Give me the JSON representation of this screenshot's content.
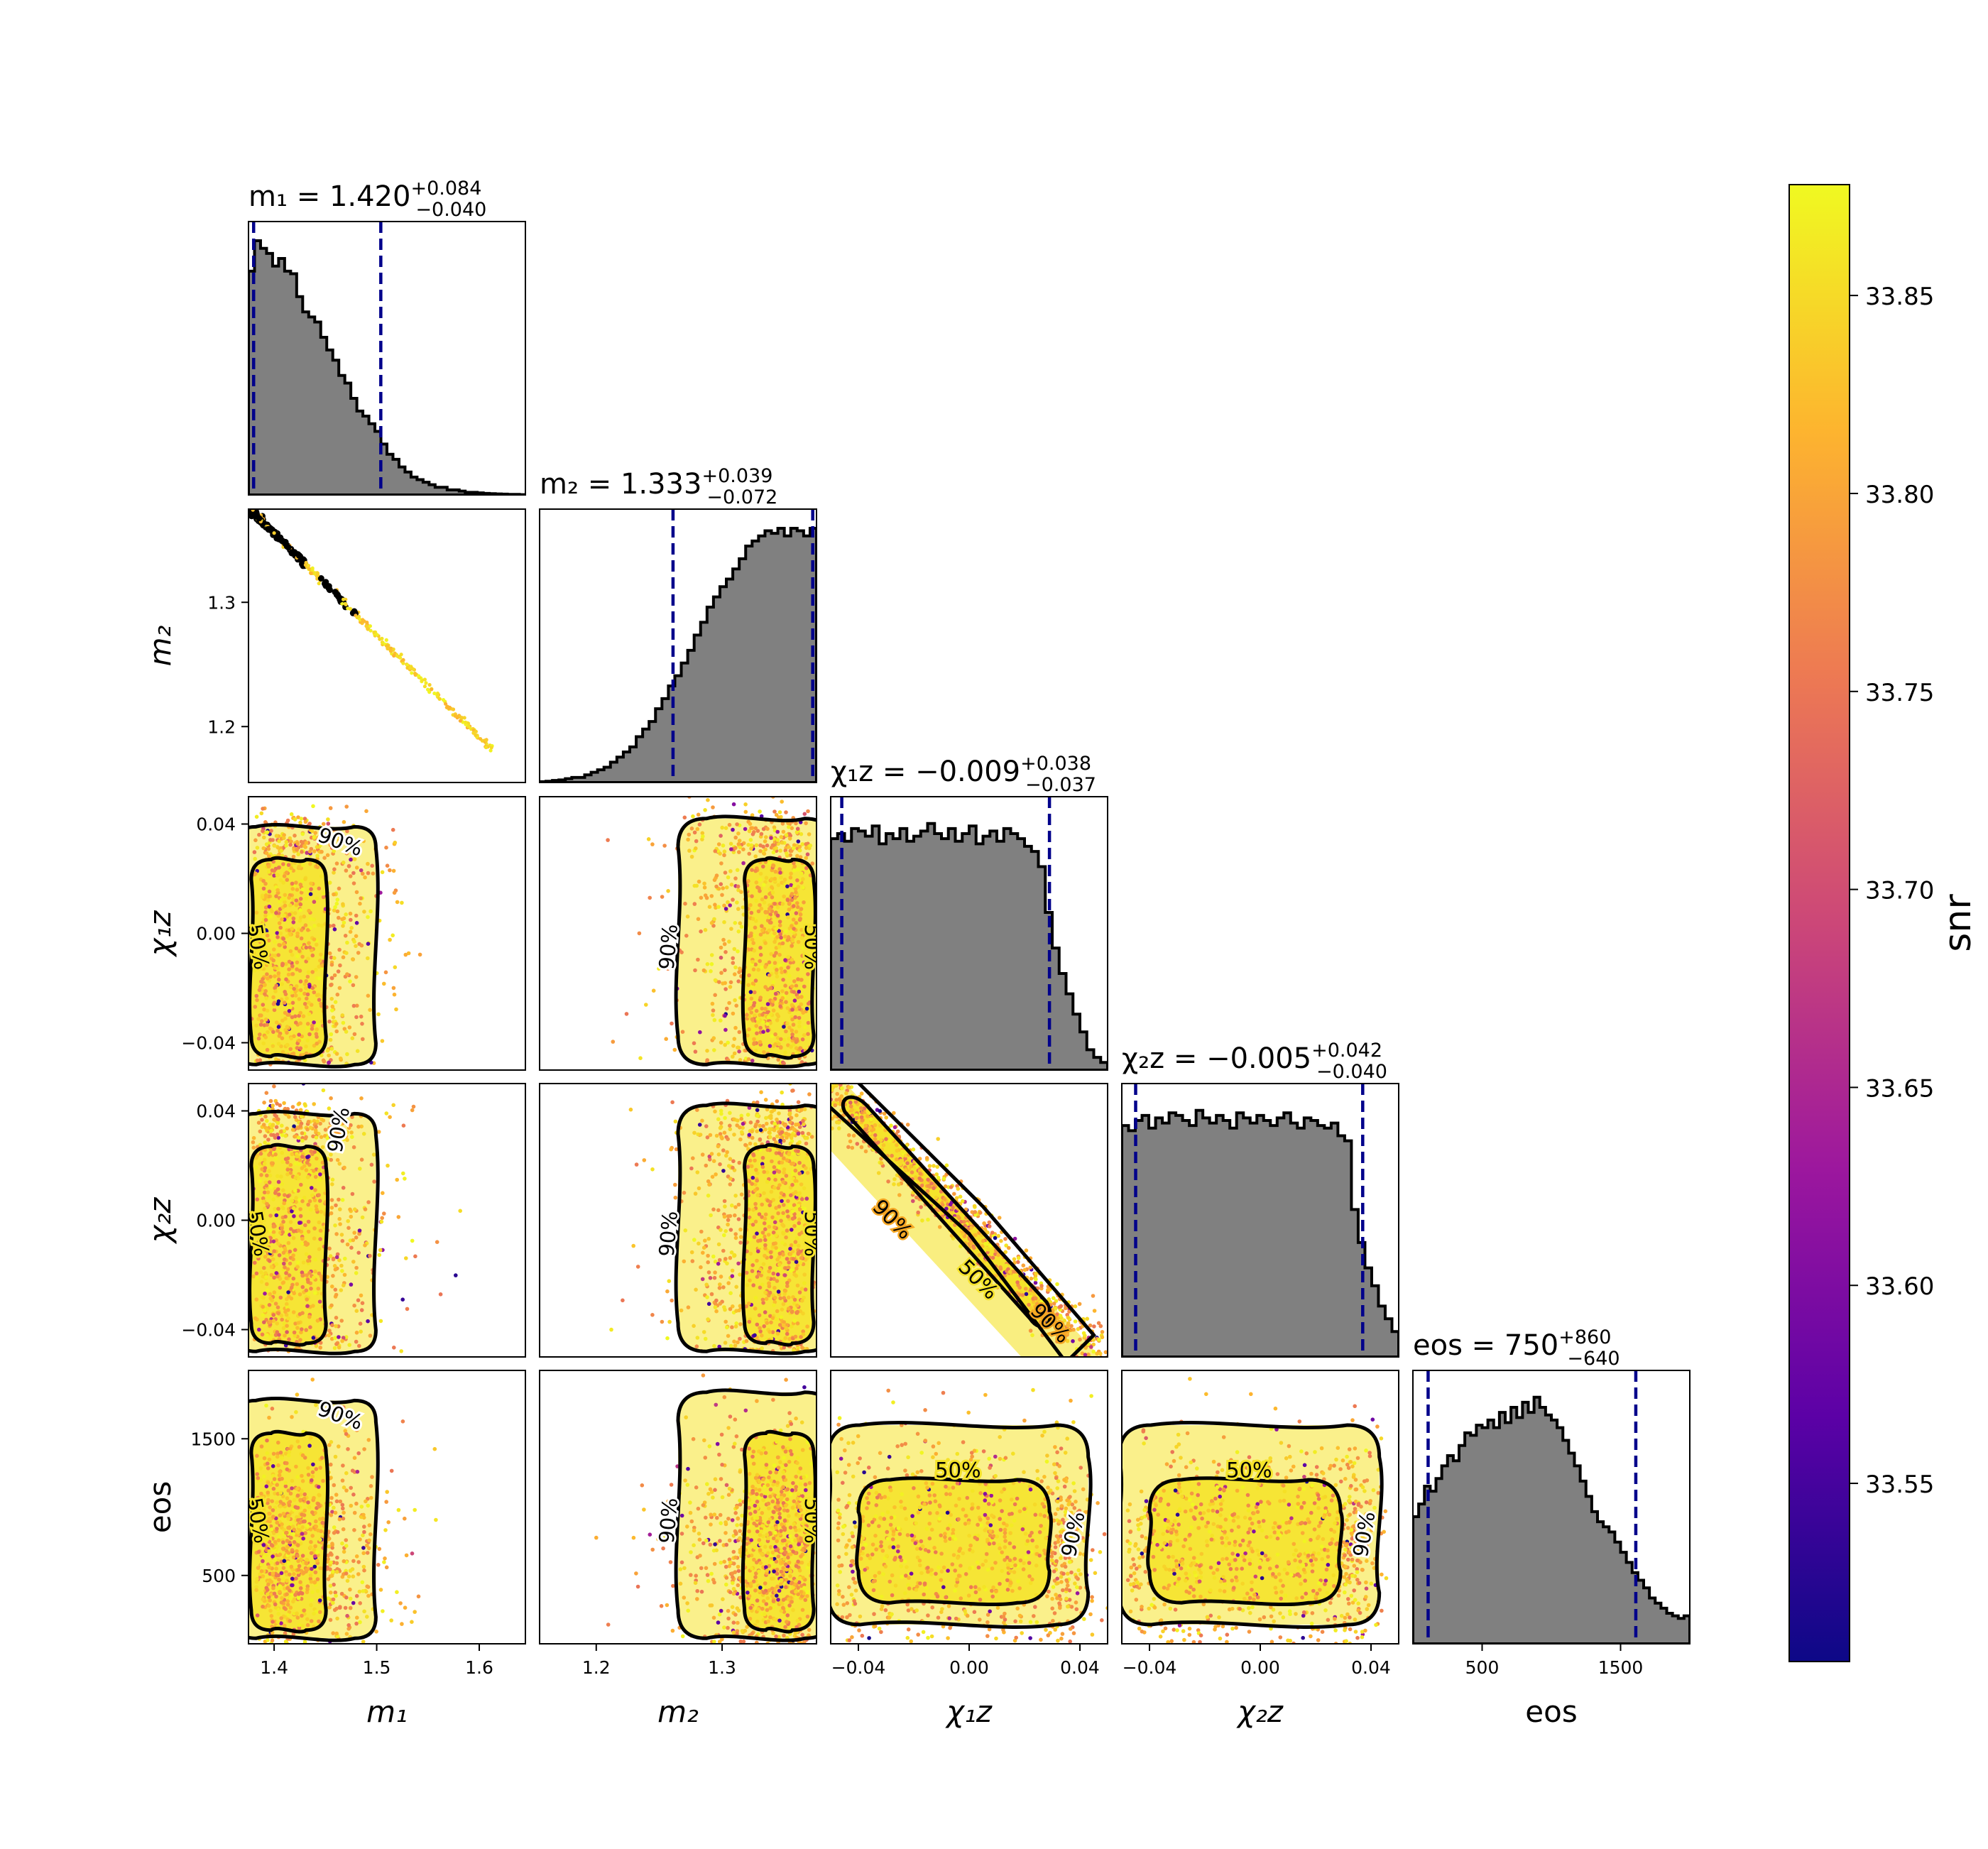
{
  "chart_data": {
    "type": "scatter",
    "figure": "corner plot",
    "parameters": [
      {
        "key": "m1",
        "label": "m₁",
        "title_name": "m₁",
        "median": "1.420",
        "plus": "+0.084",
        "minus": "−0.040",
        "range": [
          1.375,
          1.645
        ],
        "ticks": [
          1.4,
          1.5,
          1.6
        ],
        "tick_labels": [
          "1.4",
          "1.5",
          "1.6"
        ],
        "ci_lines": [
          1.38,
          1.504
        ]
      },
      {
        "key": "m2",
        "label": "m₂",
        "title_name": "m₂",
        "median": "1.333",
        "plus": "+0.039",
        "minus": "−0.072",
        "range": [
          1.155,
          1.375
        ],
        "ticks": [
          1.2,
          1.3
        ],
        "tick_labels": [
          "1.2",
          "1.3"
        ],
        "ci_lines": [
          1.261,
          1.372
        ]
      },
      {
        "key": "chi1z",
        "label": "χ₁z",
        "title_name": "χ₁z",
        "median": "−0.009",
        "plus": "+0.038",
        "minus": "−0.037",
        "range": [
          -0.05,
          0.05
        ],
        "ticks": [
          -0.04,
          0.0,
          0.04
        ],
        "tick_labels": [
          "−0.04",
          "0.00",
          "0.04"
        ],
        "ci_lines": [
          -0.046,
          0.029
        ]
      },
      {
        "key": "chi2z",
        "label": "χ₂z",
        "title_name": "χ₂z",
        "median": "−0.005",
        "plus": "+0.042",
        "minus": "−0.040",
        "range": [
          -0.05,
          0.05
        ],
        "ticks": [
          -0.04,
          0.0,
          0.04
        ],
        "tick_labels": [
          "−0.04",
          "0.00",
          "0.04"
        ],
        "ci_lines": [
          -0.045,
          0.037
        ]
      },
      {
        "key": "eos",
        "label": "eos",
        "title_name": "eos",
        "median": "750",
        "plus": "+860",
        "minus": "−640",
        "range": [
          0,
          2000
        ],
        "ticks": [
          500,
          1500
        ],
        "tick_labels": [
          "500",
          "1500"
        ],
        "ci_lines": [
          110,
          1610
        ]
      }
    ],
    "histograms": {
      "m1": [
        0.88,
        1.0,
        0.97,
        0.95,
        0.9,
        0.93,
        0.88,
        0.87,
        0.78,
        0.72,
        0.7,
        0.68,
        0.62,
        0.57,
        0.53,
        0.47,
        0.44,
        0.38,
        0.33,
        0.31,
        0.28,
        0.25,
        0.2,
        0.16,
        0.14,
        0.11,
        0.09,
        0.07,
        0.06,
        0.05,
        0.04,
        0.03,
        0.03,
        0.02,
        0.02,
        0.015,
        0.01,
        0.01,
        0.008,
        0.006,
        0.005,
        0.004,
        0.003,
        0.002,
        0.002,
        0.001
      ],
      "m2": [
        0.003,
        0.005,
        0.008,
        0.01,
        0.015,
        0.02,
        0.02,
        0.03,
        0.04,
        0.05,
        0.06,
        0.08,
        0.1,
        0.12,
        0.14,
        0.18,
        0.21,
        0.24,
        0.29,
        0.33,
        0.38,
        0.42,
        0.47,
        0.52,
        0.58,
        0.63,
        0.69,
        0.73,
        0.77,
        0.8,
        0.84,
        0.88,
        0.93,
        0.95,
        0.97,
        0.99,
        0.98,
        1.0,
        0.97,
        1.0,
        0.99,
        0.97,
        1.0
      ],
      "chi1z": [
        0.91,
        0.93,
        0.9,
        0.95,
        0.94,
        0.92,
        0.96,
        0.89,
        0.93,
        0.91,
        0.95,
        0.9,
        0.92,
        0.94,
        0.97,
        0.93,
        0.91,
        0.95,
        0.9,
        0.93,
        0.96,
        0.89,
        0.92,
        0.94,
        0.9,
        0.95,
        0.93,
        0.91,
        0.88,
        0.86,
        0.8,
        0.62,
        0.48,
        0.38,
        0.3,
        0.22,
        0.15,
        0.08,
        0.05,
        0.03
      ],
      "chi2z": [
        0.91,
        0.89,
        0.93,
        0.95,
        0.9,
        0.94,
        0.92,
        0.96,
        0.95,
        0.93,
        0.91,
        0.97,
        0.94,
        0.92,
        0.95,
        0.93,
        0.9,
        0.96,
        0.94,
        0.92,
        0.95,
        0.93,
        0.91,
        0.94,
        0.96,
        0.92,
        0.9,
        0.94,
        0.93,
        0.91,
        0.9,
        0.92,
        0.87,
        0.85,
        0.58,
        0.45,
        0.35,
        0.28,
        0.2,
        0.15,
        0.1
      ],
      "eos": [
        0.5,
        0.55,
        0.62,
        0.6,
        0.65,
        0.7,
        0.74,
        0.72,
        0.78,
        0.83,
        0.82,
        0.86,
        0.85,
        0.88,
        0.85,
        0.91,
        0.87,
        0.93,
        0.89,
        0.95,
        0.91,
        0.97,
        0.93,
        0.9,
        0.88,
        0.85,
        0.8,
        0.75,
        0.7,
        0.64,
        0.58,
        0.52,
        0.48,
        0.46,
        0.44,
        0.4,
        0.36,
        0.32,
        0.28,
        0.25,
        0.22,
        0.18,
        0.16,
        0.14,
        0.12,
        0.11,
        0.1,
        0.11
      ]
    },
    "contour_labels": [
      "50%",
      "90%"
    ],
    "colorbar": {
      "label": "snr",
      "min": 33.505,
      "max": 33.878,
      "ticks": [
        33.55,
        33.6,
        33.65,
        33.7,
        33.75,
        33.8,
        33.85
      ],
      "tick_labels": [
        "33.55",
        "33.60",
        "33.65",
        "33.70",
        "33.75",
        "33.80",
        "33.85"
      ],
      "colormap": "plasma",
      "colormap_stops": [
        "#0d0887",
        "#5c01a6",
        "#9c179e",
        "#cc4778",
        "#ed7953",
        "#fdb42f",
        "#f0f921"
      ]
    },
    "style": {
      "hist_fill": "#808080",
      "hist_edge": "#000000",
      "ci_line_color": "#00008b",
      "contour_color": "#000000",
      "dense_fill": "#f5e32b"
    }
  }
}
